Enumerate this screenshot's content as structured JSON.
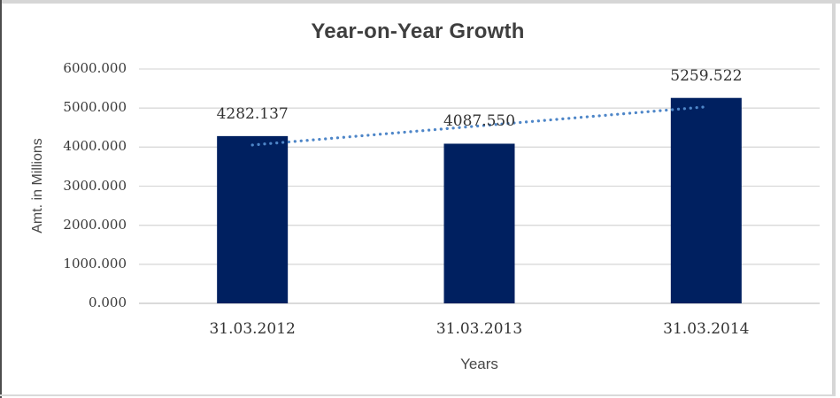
{
  "chart_data": {
    "type": "bar",
    "title": "Year-on-Year Growth",
    "xlabel": "Years",
    "ylabel": "Amt. in Millions",
    "categories": [
      "31.03.2012",
      "31.03.2013",
      "31.03.2014"
    ],
    "values": [
      4282.137,
      4087.55,
      5259.522
    ],
    "data_labels": [
      "4282.137",
      "4087.550",
      "5259.522"
    ],
    "ylim": [
      0,
      6000
    ],
    "ytick_step": 1000,
    "ytick_labels": [
      "0.000",
      "1000.000",
      "2000.000",
      "3000.000",
      "4000.000",
      "5000.000",
      "6000.000"
    ],
    "grid": true,
    "legend": "none",
    "trendline": {
      "type": "linear",
      "style": "dotted"
    }
  },
  "colors": {
    "bar": "#002060",
    "trendline": "#4e86c8",
    "gridline": "#d9d9d9",
    "axis_line": "#c3c3c3",
    "title_text": "#3f3f3f",
    "label_text": "#333333"
  }
}
